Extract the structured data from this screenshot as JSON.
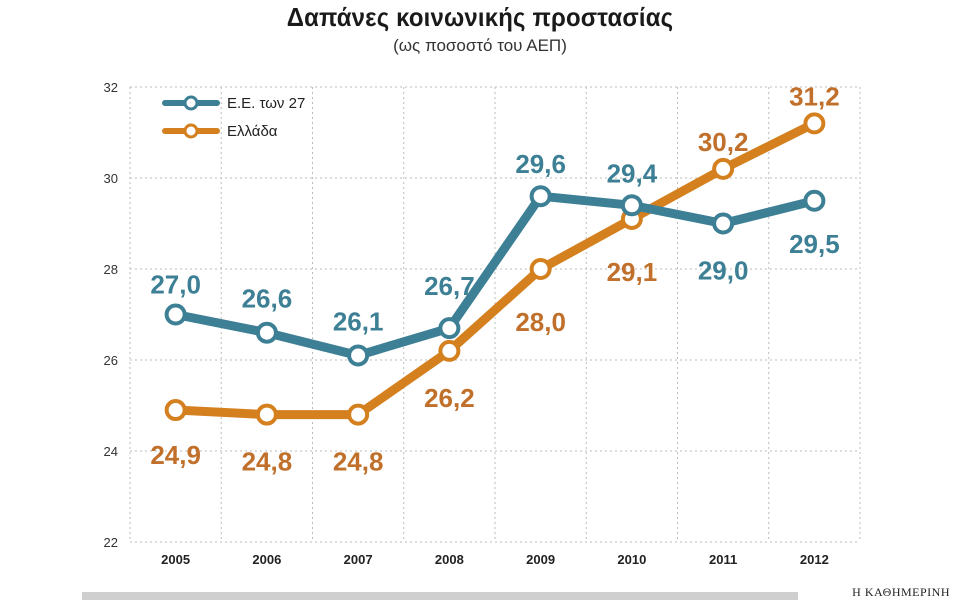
{
  "header": {
    "title": "Δαπάνες κοινωνικής προστασίας",
    "subtitle": "(ως ποσοστό του ΑΕΠ)"
  },
  "footer": {
    "brand": "Η ΚΑΘΗΜΕΡΙΝΗ"
  },
  "colors": {
    "eu": "#3d7f94",
    "greece": "#d5801f",
    "greece_label": "#c0702a",
    "grid": "#bbbbbb"
  },
  "chart_data": {
    "type": "line",
    "title": "Δαπάνες κοινωνικής προστασίας",
    "subtitle": "(ως ποσοστό του ΑΕΠ)",
    "categories": [
      "2005",
      "2006",
      "2007",
      "2008",
      "2009",
      "2010",
      "2011",
      "2012"
    ],
    "ylim": [
      22,
      32
    ],
    "yticks": [
      "22",
      "24",
      "26",
      "28",
      "30",
      "32"
    ],
    "grid": true,
    "legend_position": "top-left",
    "series": [
      {
        "name": "Ε.Ε. των 27",
        "values": [
          27.0,
          26.6,
          26.1,
          26.7,
          29.6,
          29.4,
          29.0,
          29.5
        ],
        "labels": [
          "27,0",
          "26,6",
          "26,1",
          "26,7",
          "29,6",
          "29,4",
          "29,0",
          "29,5"
        ]
      },
      {
        "name": "Ελλάδα",
        "values": [
          24.9,
          24.8,
          24.8,
          26.2,
          28.0,
          29.1,
          30.2,
          31.2
        ],
        "labels": [
          "24,9",
          "24,8",
          "24,8",
          "26,2",
          "28,0",
          "29,1",
          "30,2",
          "31,2"
        ]
      }
    ]
  }
}
